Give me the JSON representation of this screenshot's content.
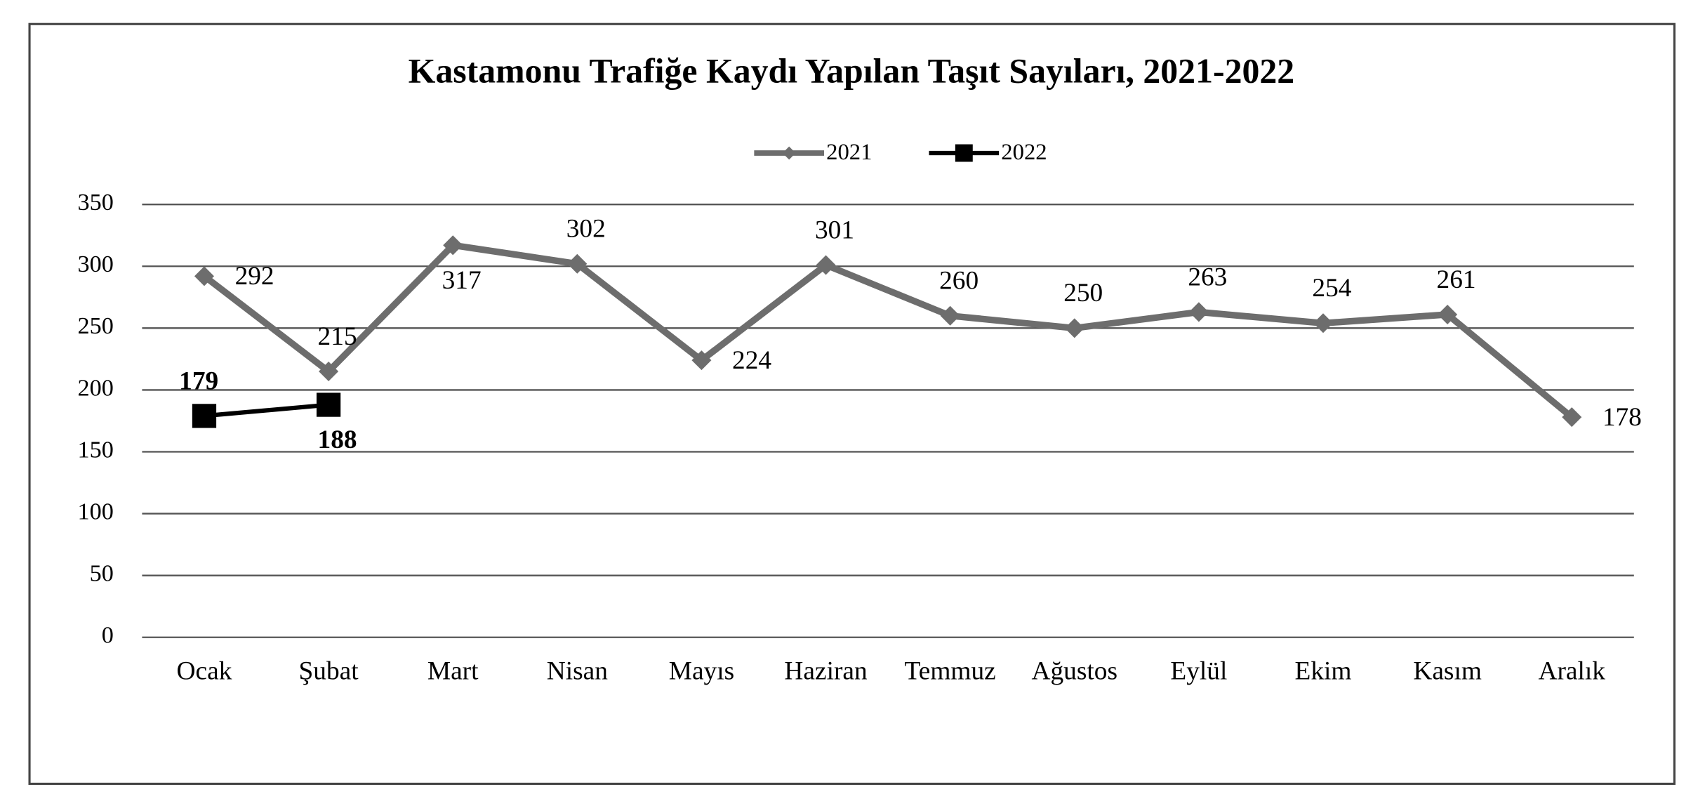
{
  "chart_data": {
    "type": "line",
    "title": "Kastamonu Trafiğe Kaydı Yapılan Taşıt Sayıları, 2021-2022",
    "categories": [
      "Ocak",
      "Şubat",
      "Mart",
      "Nisan",
      "Mayıs",
      "Haziran",
      "Temmuz",
      "Ağustos",
      "Eylül",
      "Ekim",
      "Kasım",
      "Aralık"
    ],
    "series": [
      {
        "name": "2021",
        "color": "#6d6d6d",
        "marker": "diamond",
        "values": [
          292,
          215,
          317,
          302,
          224,
          301,
          260,
          250,
          263,
          254,
          261,
          178
        ]
      },
      {
        "name": "2022",
        "color": "#000000",
        "marker": "square",
        "values": [
          179,
          188,
          null,
          null,
          null,
          null,
          null,
          null,
          null,
          null,
          null,
          null
        ]
      }
    ],
    "ylim": [
      0,
      350
    ],
    "yticks": [
      0,
      50,
      100,
      150,
      200,
      250,
      300,
      350
    ],
    "grid": true,
    "legend": "top"
  }
}
